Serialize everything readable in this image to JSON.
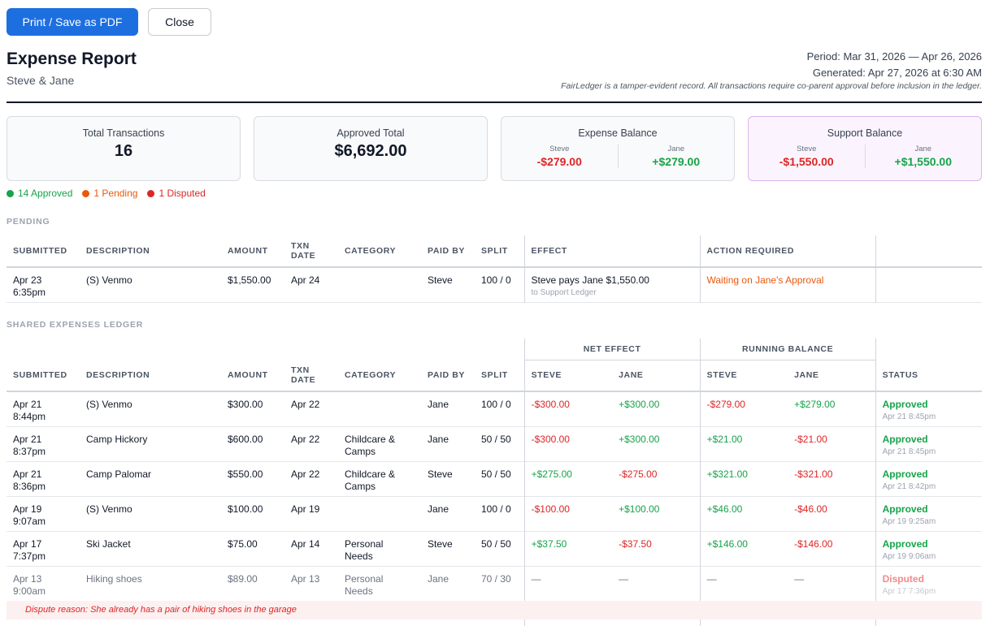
{
  "toolbar": {
    "print_label": "Print / Save as PDF",
    "close_label": "Close"
  },
  "header": {
    "title": "Expense Report",
    "subtitle": "Steve & Jane",
    "period": "Period: Mar 31, 2026 — Apr 26, 2026",
    "generated": "Generated: Apr 27, 2026 at 6:30 AM",
    "note": "FairLedger is a tamper-evident record. All transactions require co-parent approval before inclusion in the ledger."
  },
  "cards": {
    "total": {
      "label": "Total Transactions",
      "value": "16"
    },
    "approved": {
      "label": "Approved Total",
      "value": "$6,692.00"
    },
    "expense": {
      "label": "Expense Balance",
      "steve_name": "Steve",
      "steve_value": "-$279.00",
      "jane_name": "Jane",
      "jane_value": "+$279.00"
    },
    "support": {
      "label": "Support Balance",
      "steve_name": "Steve",
      "steve_value": "-$1,550.00",
      "jane_name": "Jane",
      "jane_value": "+$1,550.00"
    }
  },
  "legend": {
    "approved": "14 Approved",
    "pending": "1 Pending",
    "disputed": "1 Disputed",
    "colors": {
      "approved": "#16a34a",
      "pending": "#ea580c",
      "disputed": "#dc2626"
    }
  },
  "pending": {
    "title": "PENDING",
    "headers": {
      "submitted": "SUBMITTED",
      "description": "DESCRIPTION",
      "amount": "AMOUNT",
      "txn1": "TXN",
      "txn2": "DATE",
      "category": "CATEGORY",
      "paid_by": "PAID BY",
      "split": "SPLIT",
      "effect": "EFFECT",
      "action": "ACTION REQUIRED"
    },
    "rows": [
      {
        "date": "Apr 23",
        "time": "6:35pm",
        "description": "(S) Venmo",
        "amount": "$1,550.00",
        "txn_date": "Apr 24",
        "category": "",
        "paid_by": "Steve",
        "split": "100 / 0",
        "effect": "Steve pays Jane $1,550.00",
        "effect_sub": "to Support Ledger",
        "action": "Waiting on Jane's Approval"
      }
    ]
  },
  "ledger": {
    "title": "SHARED EXPENSES LEDGER",
    "group_headers": {
      "net_effect": "NET EFFECT",
      "running_balance": "RUNNING BALANCE"
    },
    "headers": {
      "submitted": "SUBMITTED",
      "description": "DESCRIPTION",
      "amount": "AMOUNT",
      "txn1": "TXN",
      "txn2": "DATE",
      "category": "CATEGORY",
      "paid_by": "PAID BY",
      "split": "SPLIT",
      "steve": "STEVE",
      "jane": "JANE",
      "status": "STATUS"
    },
    "rows": [
      {
        "date": "Apr 21",
        "time": "8:44pm",
        "description": "(S) Venmo",
        "amount": "$300.00",
        "txn_date": "Apr 22",
        "category1": "",
        "category2": "",
        "paid_by": "Jane",
        "split": "100 / 0",
        "net_steve": "-$300.00",
        "net_jane": "+$300.00",
        "run_steve": "+-$279.00",
        "run_jane": "+$279.00",
        "status": "Approved",
        "status_time": "Apr 21 8:45pm"
      },
      {
        "date": "Apr 21",
        "time": "8:37pm",
        "description": "Camp Hickory",
        "amount": "$600.00",
        "txn_date": "Apr 22",
        "category1": "Childcare &",
        "category2": "Camps",
        "paid_by": "Jane",
        "split": "50 / 50",
        "net_steve": "-$300.00",
        "net_jane": "+$300.00",
        "run_steve": "+$21.00",
        "run_jane": "-$21.00",
        "status": "Approved",
        "status_time": "Apr 21 8:45pm"
      },
      {
        "date": "Apr 21",
        "time": "8:36pm",
        "description": "Camp Palomar",
        "amount": "$550.00",
        "txn_date": "Apr 22",
        "category1": "Childcare &",
        "category2": "Camps",
        "paid_by": "Steve",
        "split": "50 / 50",
        "net_steve": "+$275.00",
        "net_jane": "-$275.00",
        "run_steve": "+$321.00",
        "run_jane": "-$321.00",
        "status": "Approved",
        "status_time": "Apr 21 8:42pm"
      },
      {
        "date": "Apr 19",
        "time": "9:07am",
        "description": "(S) Venmo",
        "amount": "$100.00",
        "txn_date": "Apr 19",
        "category1": "",
        "category2": "",
        "paid_by": "Jane",
        "split": "100 / 0",
        "net_steve": "-$100.00",
        "net_jane": "+$100.00",
        "run_steve": "+$46.00",
        "run_jane": "-$46.00",
        "status": "Approved",
        "status_time": "Apr 19 9:25am"
      },
      {
        "date": "Apr 17",
        "time": "7:37pm",
        "description": "Ski Jacket",
        "amount": "$75.00",
        "txn_date": "Apr 14",
        "category1": "Personal",
        "category2": "Needs",
        "paid_by": "Steve",
        "split": "50 / 50",
        "net_steve": "+$37.50",
        "net_jane": "-$37.50",
        "run_steve": "+$146.00",
        "run_jane": "-$146.00",
        "status": "Approved",
        "status_time": "Apr 19 9:06am"
      },
      {
        "date": "Apr 13",
        "time": "9:00am",
        "description": "Hiking shoes",
        "amount": "$89.00",
        "txn_date": "Apr 13",
        "category1": "Personal",
        "category2": "Needs",
        "paid_by": "Jane",
        "split": "70 / 30",
        "net_steve": "—",
        "net_jane": "—",
        "run_steve": "—",
        "run_jane": "—",
        "status": "Disputed",
        "status_time": "Apr 17 7:36pm"
      }
    ],
    "dispute_reason": "Dispute reason: She already has a pair of hiking shoes in the garage"
  }
}
